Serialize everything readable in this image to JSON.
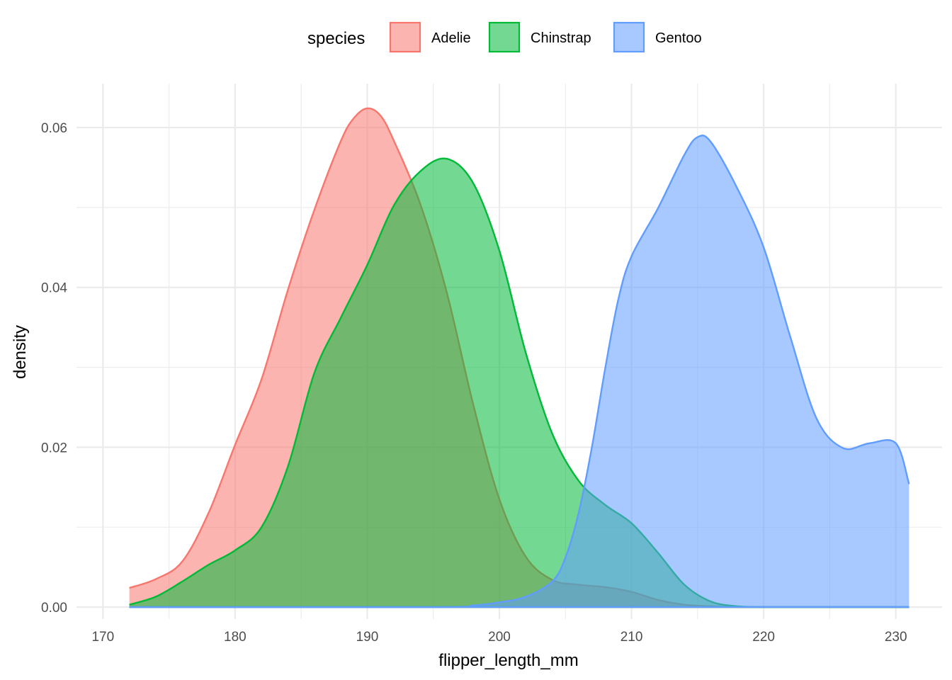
{
  "chart_data": {
    "type": "area",
    "title": "",
    "xlabel": "flipper_length_mm",
    "ylabel": "density",
    "xlim": [
      168,
      233.5
    ],
    "ylim": [
      -0.0015,
      0.0655
    ],
    "x_ticks_major": [
      170,
      180,
      190,
      200,
      210,
      220,
      230
    ],
    "x_tick_labels": [
      "170",
      "180",
      "190",
      "200",
      "210",
      "220",
      "230"
    ],
    "x_ticks_minor": [
      175,
      185,
      195,
      205,
      215,
      225
    ],
    "y_ticks_major": [
      0,
      0.02,
      0.04,
      0.06
    ],
    "y_tick_labels": [
      "0.00",
      "0.02",
      "0.04",
      "0.06"
    ],
    "y_ticks_minor": [
      0.01,
      0.03,
      0.05
    ],
    "grid": true,
    "legend": {
      "title": "species",
      "position": "top"
    },
    "series": [
      {
        "name": "Adelie",
        "color": "#F8766D",
        "x": [
          172,
          174,
          176,
          178,
          180,
          182,
          184,
          186,
          188,
          189,
          190,
          191,
          192,
          194,
          196,
          198,
          200,
          202,
          204,
          206,
          208,
          210,
          212,
          214,
          216,
          218,
          220,
          225,
          231
        ],
        "y": [
          0.0024,
          0.0035,
          0.0057,
          0.0118,
          0.0203,
          0.0285,
          0.0397,
          0.0497,
          0.0583,
          0.0612,
          0.0624,
          0.0615,
          0.0584,
          0.0505,
          0.0395,
          0.0255,
          0.0135,
          0.0063,
          0.0034,
          0.0028,
          0.0025,
          0.0019,
          0.0009,
          0.0003,
          0.0001,
          0.0,
          0.0,
          0.0,
          0.0
        ]
      },
      {
        "name": "Chinstrap",
        "color": "#00BA38",
        "x": [
          172,
          174,
          176,
          178,
          180,
          182,
          184,
          186,
          188,
          190,
          192,
          194,
          196,
          198,
          200,
          202,
          204,
          206,
          208,
          210,
          212,
          214,
          216,
          218,
          220,
          225,
          231
        ],
        "y": [
          0.0003,
          0.0013,
          0.0032,
          0.0053,
          0.0071,
          0.01,
          0.0176,
          0.0293,
          0.0362,
          0.0428,
          0.0502,
          0.0545,
          0.0561,
          0.0531,
          0.0446,
          0.0318,
          0.0217,
          0.0158,
          0.0128,
          0.0105,
          0.0068,
          0.0028,
          0.0007,
          0.0001,
          0.0,
          0.0,
          0.0
        ]
      },
      {
        "name": "Gentoo",
        "color": "#619CFF",
        "x": [
          172,
          195,
          198,
          200,
          202,
          204,
          205,
          206,
          207,
          208,
          209,
          210,
          212,
          214,
          215,
          216,
          218,
          220,
          222,
          224,
          226,
          228,
          230,
          231
        ],
        "y": [
          0.0,
          0.0,
          0.0002,
          0.0006,
          0.0013,
          0.0032,
          0.0062,
          0.0118,
          0.02,
          0.0298,
          0.0385,
          0.0439,
          0.0499,
          0.0566,
          0.0588,
          0.0582,
          0.0524,
          0.045,
          0.0339,
          0.0236,
          0.0199,
          0.0205,
          0.0205,
          0.0154
        ]
      }
    ]
  }
}
